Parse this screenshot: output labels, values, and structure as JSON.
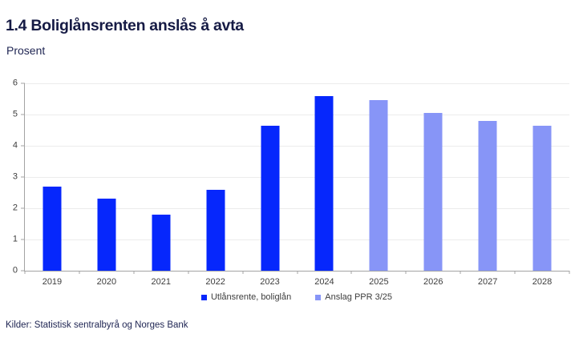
{
  "chart_data": {
    "type": "bar",
    "title": "1.4 Boliglånsrenten anslås å avta",
    "subtitle": "Prosent",
    "categories": [
      "2019",
      "2020",
      "2021",
      "2022",
      "2023",
      "2024",
      "2025",
      "2026",
      "2027",
      "2028"
    ],
    "series": [
      {
        "name": "Utlånsrente, boliglån",
        "color": "#0627fc",
        "values": [
          2.7,
          2.3,
          1.8,
          2.6,
          4.65,
          5.6,
          null,
          null,
          null,
          null
        ]
      },
      {
        "name": "Anslag PPR 3/25",
        "color": "#8795f7",
        "values": [
          null,
          null,
          null,
          null,
          null,
          null,
          5.45,
          5.05,
          4.8,
          4.65
        ]
      }
    ],
    "ylim": [
      0,
      6
    ],
    "yticks": [
      0,
      1,
      2,
      3,
      4,
      5,
      6
    ],
    "grid": true,
    "legend_position": "bottom",
    "source": "Kilder: Statistisk sentralbyrå og Norges Bank"
  }
}
